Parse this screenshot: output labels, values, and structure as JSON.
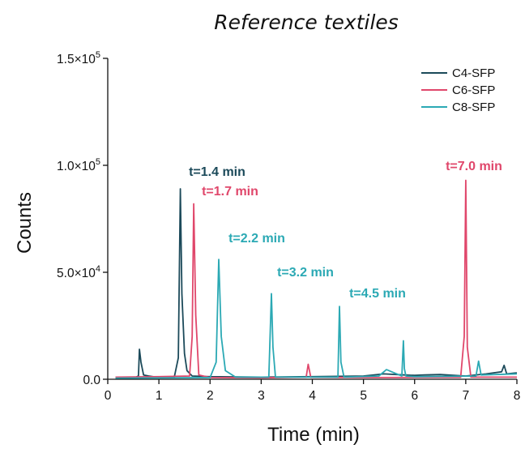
{
  "chart_data": {
    "type": "line",
    "title": "Reference textiles",
    "xlabel": "Time (min)",
    "ylabel": "Counts",
    "xlim": [
      0,
      8
    ],
    "ylim": [
      0,
      150000
    ],
    "x_ticks": [
      0,
      1,
      2,
      3,
      4,
      5,
      6,
      7,
      8
    ],
    "x_tick_labels": [
      "0",
      "1",
      "2",
      "3",
      "4",
      "5",
      "6",
      "7",
      "8"
    ],
    "y_ticks": [
      0,
      50000,
      100000,
      150000
    ],
    "y_tick_labels": [
      {
        "base": "0.0",
        "exp": ""
      },
      {
        "base": "5.0×10",
        "exp": "4"
      },
      {
        "base": "1.0×10",
        "exp": "5"
      },
      {
        "base": "1.5×10",
        "exp": "5"
      }
    ],
    "grid": false,
    "legend_position": "top-right",
    "series": [
      {
        "name": "C4-SFP",
        "color": "#1c4a5a",
        "x": [
          0.15,
          0.55,
          0.6,
          0.62,
          0.65,
          0.7,
          0.8,
          1.0,
          1.3,
          1.38,
          1.42,
          1.45,
          1.5,
          1.55,
          1.65,
          2.0,
          3.0,
          4.0,
          5.0,
          5.4,
          5.8,
          6.0,
          6.2,
          6.5,
          7.0,
          7.4,
          7.7,
          7.75,
          7.8,
          8.0
        ],
        "y": [
          800,
          1000,
          1500,
          14000,
          8000,
          2000,
          1500,
          800,
          1000,
          10000,
          89000,
          40000,
          12000,
          4000,
          1500,
          1200,
          1000,
          1200,
          1500,
          2500,
          2000,
          1800,
          2000,
          2200,
          1500,
          2500,
          3500,
          6500,
          2500,
          3000
        ]
      },
      {
        "name": "C6-SFP",
        "color": "#e0476b",
        "x": [
          0.15,
          1.0,
          1.6,
          1.65,
          1.68,
          1.72,
          1.78,
          2.0,
          3.0,
          3.88,
          3.92,
          3.97,
          5.0,
          6.9,
          6.97,
          7.0,
          7.03,
          7.1,
          8.0
        ],
        "y": [
          1000,
          1200,
          1500,
          20000,
          82000,
          30000,
          2000,
          800,
          700,
          1000,
          7000,
          900,
          800,
          900,
          20000,
          93000,
          15000,
          1000,
          1000
        ]
      },
      {
        "name": "C8-SFP",
        "color": "#2ba9b4",
        "x": [
          0.15,
          2.0,
          2.12,
          2.17,
          2.22,
          2.3,
          2.5,
          3.15,
          3.2,
          3.23,
          3.28,
          4.5,
          4.53,
          4.56,
          4.62,
          5.3,
          5.45,
          5.6,
          5.75,
          5.78,
          5.8,
          5.83,
          6.0,
          7.2,
          7.25,
          7.3,
          8.0
        ],
        "y": [
          500,
          800,
          8000,
          56000,
          20000,
          4000,
          1000,
          1000,
          40000,
          15000,
          1000,
          1000,
          34000,
          8000,
          1000,
          1500,
          4500,
          3000,
          1500,
          18000,
          5000,
          1500,
          1200,
          1500,
          8500,
          2000,
          2500
        ]
      }
    ],
    "annotations": [
      {
        "text": "t=1.4 min",
        "color": "#1c4a5a"
      },
      {
        "text": "t=1.7 min",
        "color": "#e0476b"
      },
      {
        "text": "t=2.2 min",
        "color": "#2ba9b4"
      },
      {
        "text": "t=3.2 min",
        "color": "#2ba9b4"
      },
      {
        "text": "t=4.5 min",
        "color": "#2ba9b4"
      },
      {
        "text": "t=7.0 min",
        "color": "#e0476b"
      }
    ]
  }
}
